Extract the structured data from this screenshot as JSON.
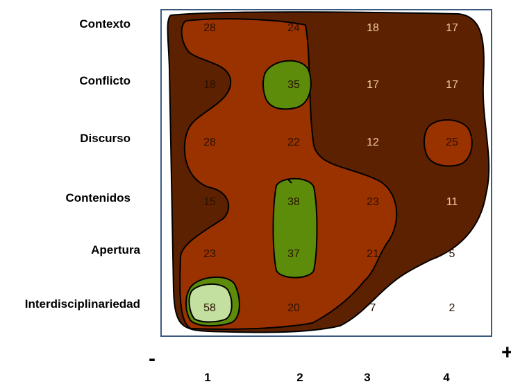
{
  "chart_data": {
    "type": "heatmap",
    "rows": [
      "Contexto",
      "Conflicto",
      "Discurso",
      "Contenidos",
      "Apertura",
      "Interdisciplinariedad"
    ],
    "columns": [
      "1",
      "2",
      "3",
      "4"
    ],
    "values": [
      [
        28,
        24,
        18,
        17
      ],
      [
        18,
        35,
        17,
        17
      ],
      [
        28,
        22,
        12,
        25
      ],
      [
        15,
        38,
        23,
        11
      ],
      [
        23,
        37,
        21,
        5
      ],
      [
        58,
        20,
        7,
        2
      ]
    ],
    "axis_signs": {
      "minus": "-",
      "plus": "+"
    },
    "colors": {
      "dark_brown": "#5c2100",
      "orange_brown": "#9a3200",
      "green": "#5d8c0a",
      "light_green": "#c4e0a0",
      "frame": "#3a5a80",
      "text_light": "#f4c9a0",
      "text_dark": "#2a1000"
    }
  }
}
